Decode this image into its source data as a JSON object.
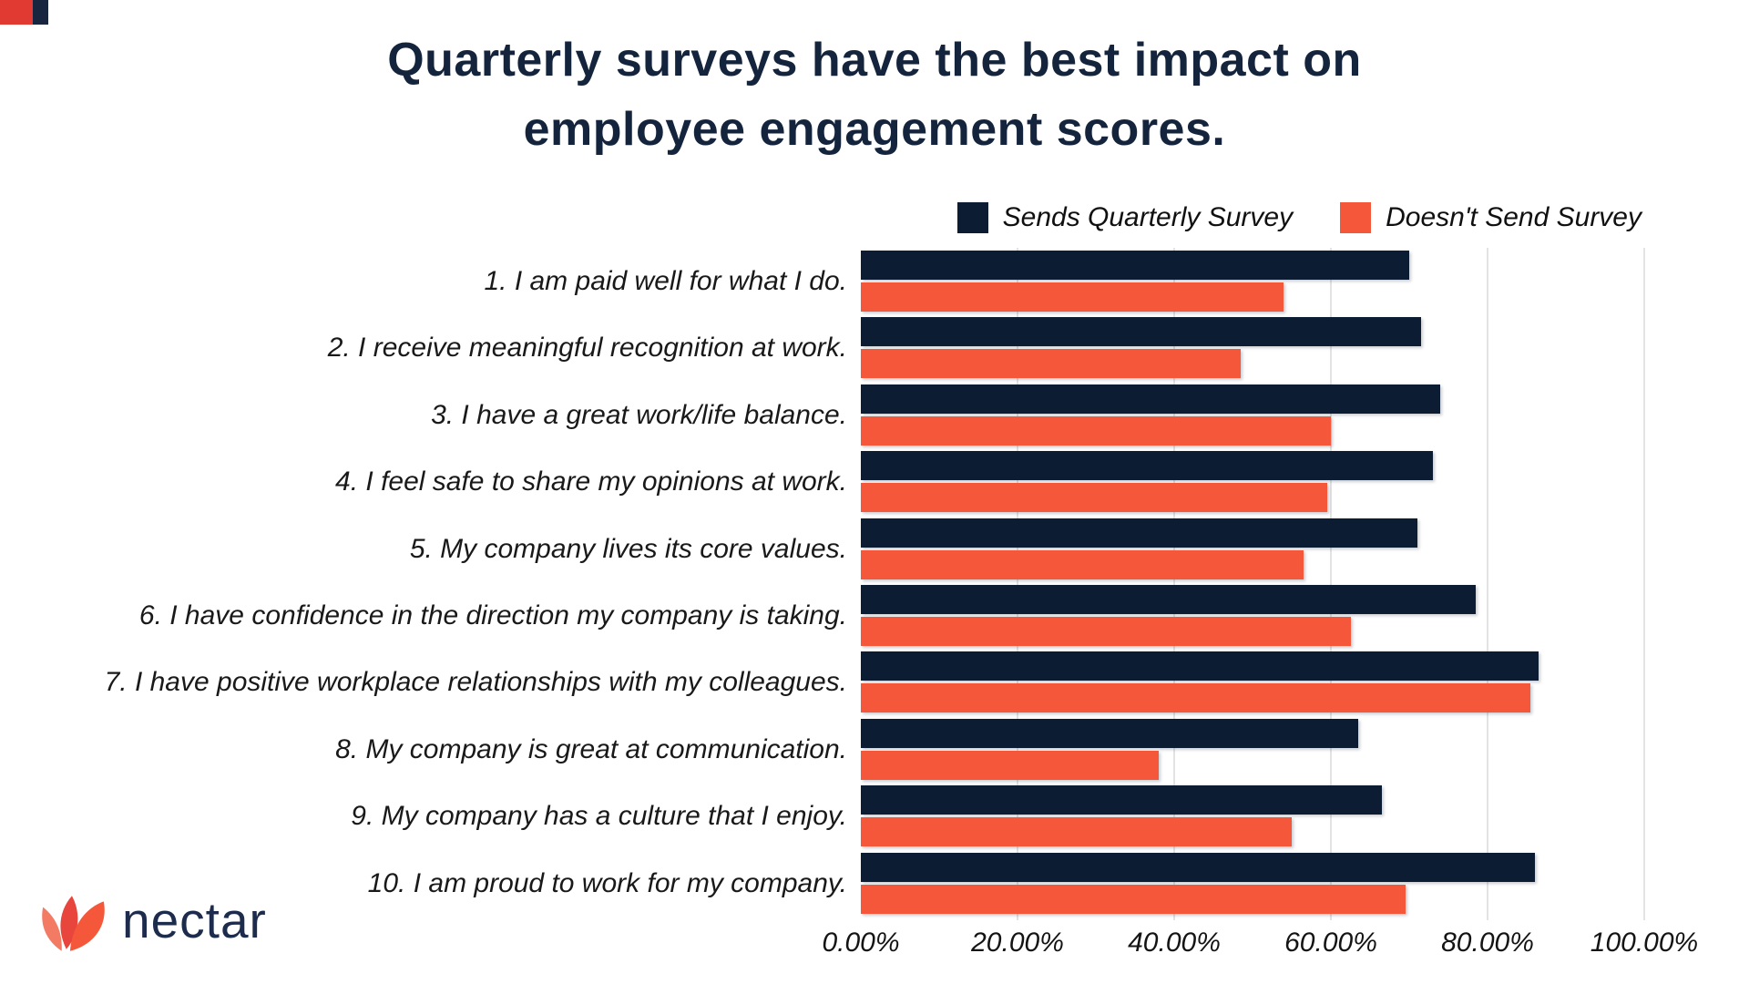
{
  "title": {
    "line1": "Quarterly surveys have the best impact on",
    "line2": "employee engagement scores."
  },
  "brand": {
    "name": "nectar"
  },
  "decor": {
    "corner_red": "#e03a33",
    "corner_navy": "#17263e"
  },
  "chart_data": {
    "type": "bar",
    "orientation": "horizontal",
    "title": "Quarterly surveys have the best impact on employee engagement scores.",
    "categories": [
      "1. I am paid well for what I do.",
      "2. I receive meaningful recognition at work.",
      "3. I have a great work/life balance.",
      "4. I feel safe to share my opinions at work.",
      "5. My company lives its core values.",
      "6. I have confidence in the direction my company is taking.",
      "7. I have positive workplace relationships with my colleagues.",
      "8. My company is great at communication.",
      "9. My company has a culture that I enjoy.",
      "10. I am proud to work for my company."
    ],
    "series": [
      {
        "name": "Sends Quarterly Survey",
        "color": "#0c1d33",
        "values": [
          70,
          71.5,
          74,
          73,
          71,
          78.5,
          86.5,
          63.5,
          66.5,
          86
        ]
      },
      {
        "name": "Doesn't Send Survey",
        "color": "#f4573a",
        "values": [
          54,
          48.5,
          60,
          59.5,
          56.5,
          62.5,
          85.5,
          38,
          55,
          69.5
        ]
      }
    ],
    "values_unit": "%",
    "x_axis": {
      "min": 0,
      "max": 100,
      "tick_labels": [
        "0.00%",
        "20.00%",
        "40.00%",
        "60.00%",
        "80.00%",
        "100.00%"
      ]
    },
    "grid": true,
    "legend_position": "top-right"
  }
}
